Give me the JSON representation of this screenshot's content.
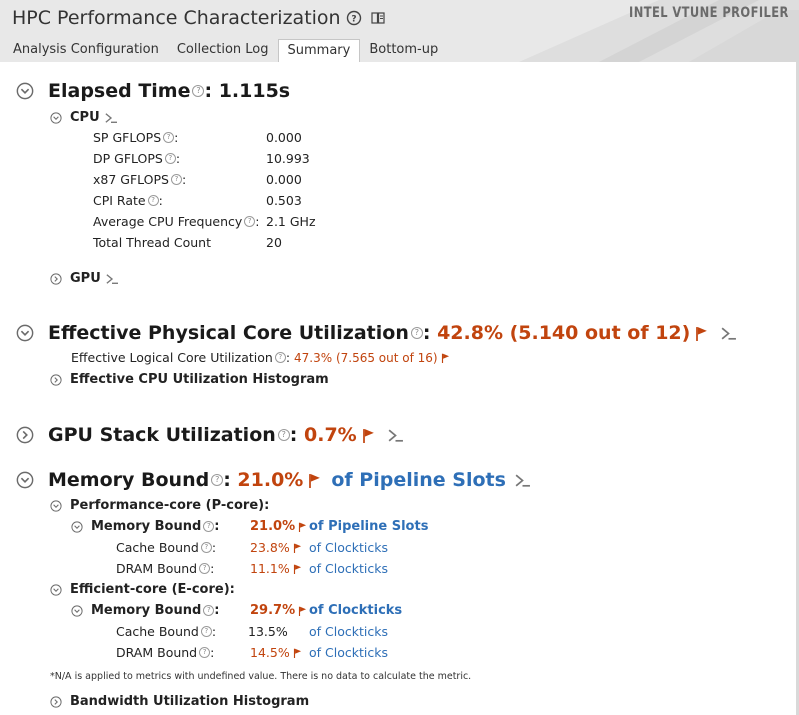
{
  "header": {
    "title": "HPC Performance Characterization",
    "brand": "INTEL VTUNE PROFILER",
    "tabs": [
      "Analysis Configuration",
      "Collection Log",
      "Summary",
      "Bottom-up"
    ],
    "active_tab": "Summary"
  },
  "elapsed": {
    "label": "Elapsed Time",
    "value": ": 1.115s",
    "cpu": {
      "label": "CPU",
      "metrics": [
        {
          "label": "SP GFLOPS",
          "value": "0.000"
        },
        {
          "label": "DP GFLOPS",
          "value": "10.993"
        },
        {
          "label": "x87 GFLOPS",
          "value": "0.000"
        },
        {
          "label": "CPI Rate",
          "value": "0.503"
        },
        {
          "label": "Average CPU Frequency",
          "value": "2.1 GHz"
        },
        {
          "label": "Total Thread Count",
          "value": "20"
        }
      ]
    },
    "gpu": {
      "label": "GPU"
    }
  },
  "physical_core": {
    "label": "Effective Physical Core Utilization",
    "value": "42.8% (5.140 out of 12)",
    "logical_label": "Effective Logical Core Utilization",
    "logical_value": "47.3% (7.565 out of 16)",
    "histogram_label": "Effective CPU Utilization Histogram"
  },
  "gpu_stack": {
    "label": "GPU Stack Utilization",
    "value": "0.7%"
  },
  "memory_bound": {
    "label": "Memory Bound",
    "value": "21.0%",
    "unit": "of Pipeline Slots",
    "groups": [
      {
        "label": "Performance-core (P-core):",
        "parent": {
          "label": "Memory Bound",
          "value": "21.0%",
          "unit": "of Pipeline Slots"
        },
        "children": [
          {
            "label": "Cache Bound",
            "value": "23.8%",
            "unit": "of Clockticks"
          },
          {
            "label": "DRAM Bound",
            "value": "11.1%",
            "unit": "of Clockticks"
          }
        ]
      },
      {
        "label": "Efficient-core (E-core):",
        "parent": {
          "label": "Memory Bound",
          "value": "29.7%",
          "unit": "of Clockticks"
        },
        "children": [
          {
            "label": "Cache Bound",
            "value": "13.5%",
            "unit": "of Clockticks"
          },
          {
            "label": "DRAM Bound",
            "value": "14.5%",
            "unit": "of Clockticks"
          }
        ]
      }
    ],
    "note": "*N/A is applied to metrics with undefined value. There is no data to calculate the metric.",
    "bandwidth_label": "Bandwidth Utilization Histogram"
  },
  "colors": {
    "accent_red": "#c1440e",
    "link_blue": "#2e6fb7",
    "header_bg": "#e8e8e8"
  }
}
